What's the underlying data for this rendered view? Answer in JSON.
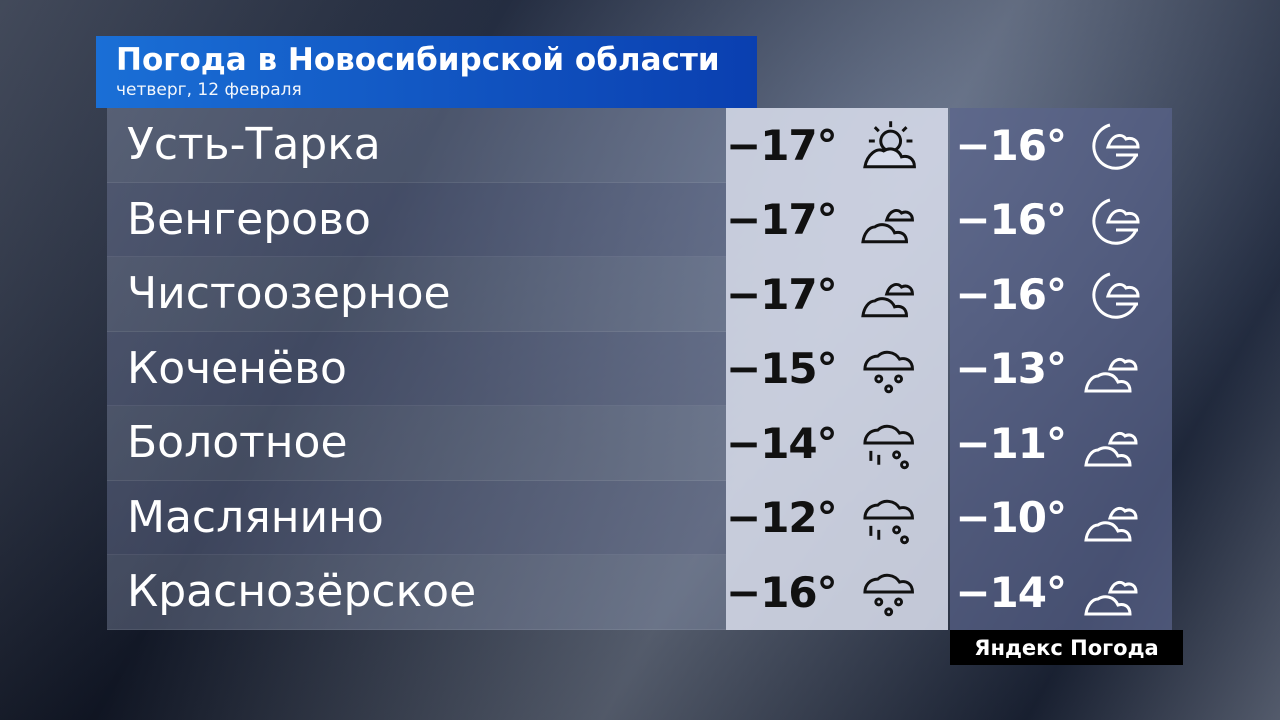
{
  "header": {
    "title": "Погода в Новосибирской области",
    "subtitle": "четверг, 12 февраля"
  },
  "rows": [
    {
      "city": "Усть-Тарка",
      "day_temp": "−17°",
      "day_icon": "sun-cloud-icon",
      "night_temp": "−16°",
      "night_icon": "moon-cloud-icon"
    },
    {
      "city": "Венгерово",
      "day_temp": "−17°",
      "day_icon": "cloudy-icon",
      "night_temp": "−16°",
      "night_icon": "moon-cloud-icon"
    },
    {
      "city": "Чистоозерное",
      "day_temp": "−17°",
      "day_icon": "cloudy-icon",
      "night_temp": "−16°",
      "night_icon": "moon-cloud-icon"
    },
    {
      "city": "Коченёво",
      "day_temp": "−15°",
      "day_icon": "snow-icon",
      "night_temp": "−13°",
      "night_icon": "cloudy-icon"
    },
    {
      "city": "Болотное",
      "day_temp": "−14°",
      "day_icon": "sleet-icon",
      "night_temp": "−11°",
      "night_icon": "cloudy-icon"
    },
    {
      "city": "Маслянино",
      "day_temp": "−12°",
      "day_icon": "sleet-icon",
      "night_temp": "−10°",
      "night_icon": "cloudy-icon"
    },
    {
      "city": "Краснозёрское",
      "day_temp": "−16°",
      "day_icon": "snow-icon",
      "night_temp": "−14°",
      "night_icon": "cloudy-icon"
    }
  ],
  "logo": "Яндекс Погода",
  "colors": {
    "title_bg": "#1a6fd6",
    "day_bg": "#d7dceb",
    "night_bg": "#5a648c"
  }
}
